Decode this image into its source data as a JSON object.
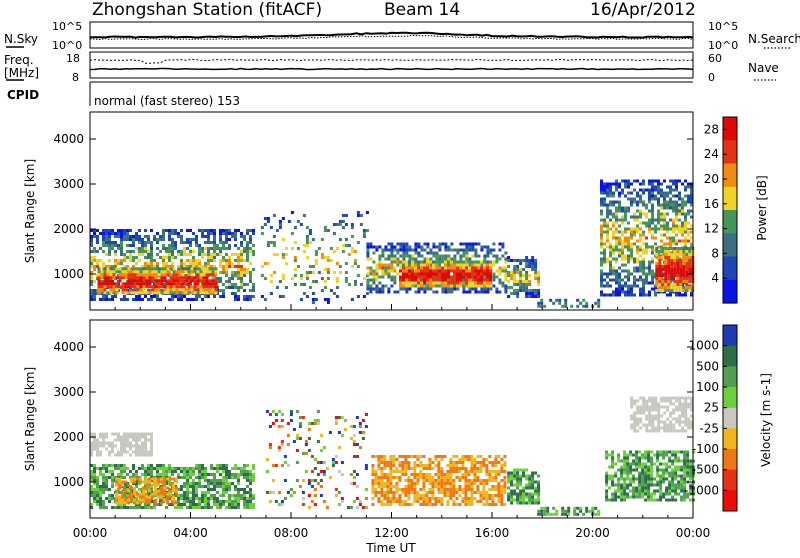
{
  "header": {
    "station": "Zhongshan Station (fitACF)",
    "beam": "Beam 14",
    "date": "16/Apr/2012"
  },
  "status_panels": {
    "nsky_label": "N.Sky",
    "nsky_ticks": [
      "10^5",
      "10^0"
    ],
    "nsearch_label": "N.Search",
    "nsearch_ticks": [
      "10^5",
      "10^0"
    ],
    "freq_label": "Freq.",
    "freq_unit": "[MHz]",
    "freq_ticks": [
      "18",
      "8"
    ],
    "nave_label": "Nave",
    "nave_ticks": [
      "60",
      "0"
    ],
    "cpid_label": "CPID",
    "cpid_text": "normal (fast stereo) 153"
  },
  "chart_data": [
    {
      "type": "heatmap",
      "panel": "power",
      "ylabel": "Slant Range [km]",
      "xlabel": "Time UT",
      "y_ticks": [
        "1000",
        "2000",
        "3000",
        "4000"
      ],
      "ylim": [
        200,
        4600
      ],
      "xlim": [
        0,
        24
      ],
      "x_ticks": [
        "00:00",
        "04:00",
        "08:00",
        "12:00",
        "16:00",
        "20:00",
        "00:00"
      ],
      "colorbar_label": "Power [dB]",
      "colorbar_ticks": [
        "4",
        "8",
        "12",
        "16",
        "20",
        "24",
        "28"
      ],
      "colorbar_range": [
        0,
        30
      ],
      "colorbar_colors": [
        "#0a14e6",
        "#1e46b4",
        "#3c6f82",
        "#46965a",
        "#f0d228",
        "#f08c14",
        "#e63214",
        "#dc0a0a"
      ],
      "echo_regions": [
        {
          "t0": 0.0,
          "t1": 6.5,
          "r0": 450,
          "r1": 2000,
          "level": "mixed"
        },
        {
          "t0": 0.3,
          "t1": 5.0,
          "r0": 550,
          "r1": 1150,
          "level": "strong"
        },
        {
          "t0": 6.8,
          "t1": 11.0,
          "r0": 350,
          "r1": 2400,
          "level": "sparse"
        },
        {
          "t0": 11.0,
          "t1": 16.5,
          "r0": 600,
          "r1": 1700,
          "level": "mixed"
        },
        {
          "t0": 12.3,
          "t1": 16.0,
          "r0": 700,
          "r1": 1300,
          "level": "strong"
        },
        {
          "t0": 16.6,
          "t1": 17.8,
          "r0": 500,
          "r1": 1400,
          "level": "moderate"
        },
        {
          "t0": 17.8,
          "t1": 20.3,
          "r0": 250,
          "r1": 450,
          "level": "weak"
        },
        {
          "t0": 20.3,
          "t1": 24.0,
          "r0": 500,
          "r1": 3100,
          "level": "mixed"
        },
        {
          "t0": 22.5,
          "t1": 24.0,
          "r0": 600,
          "r1": 1600,
          "level": "strong"
        }
      ]
    },
    {
      "type": "heatmap",
      "panel": "velocity",
      "ylabel": "Slant Range [km]",
      "xlabel": "Time UT",
      "y_ticks": [
        "1000",
        "2000",
        "3000",
        "4000"
      ],
      "ylim": [
        200,
        4600
      ],
      "xlim": [
        0,
        24
      ],
      "x_ticks": [
        "00:00",
        "04:00",
        "08:00",
        "12:00",
        "16:00",
        "20:00",
        "00:00"
      ],
      "colorbar_label": "Velocity [m s-1]",
      "colorbar_ticks": [
        "1000",
        "500",
        "100",
        "25",
        "-25",
        "-100",
        "-500",
        "-1000"
      ],
      "colorbar_colors": [
        "#1e3cb4",
        "#2d6e4b",
        "#50a050",
        "#6ccf3c",
        "#c8c8c0",
        "#f0b41e",
        "#f07814",
        "#e63214",
        "#f00a0a"
      ],
      "echo_regions": [
        {
          "t0": 0.0,
          "t1": 6.5,
          "r0": 450,
          "r1": 1400,
          "class": "positive"
        },
        {
          "t0": 0.0,
          "t1": 2.5,
          "r0": 1600,
          "r1": 2100,
          "class": "near-zero"
        },
        {
          "t0": 1.0,
          "t1": 3.5,
          "r0": 500,
          "r1": 1100,
          "class": "negative"
        },
        {
          "t0": 7.0,
          "t1": 11.0,
          "r0": 400,
          "r1": 2600,
          "class": "sparse-mixed"
        },
        {
          "t0": 11.2,
          "t1": 16.5,
          "r0": 500,
          "r1": 1600,
          "class": "negative"
        },
        {
          "t0": 16.6,
          "t1": 17.8,
          "r0": 500,
          "r1": 1300,
          "class": "positive"
        },
        {
          "t0": 17.8,
          "t1": 20.3,
          "r0": 250,
          "r1": 450,
          "class": "positive"
        },
        {
          "t0": 20.5,
          "t1": 24.0,
          "r0": 600,
          "r1": 1700,
          "class": "positive"
        },
        {
          "t0": 21.5,
          "t1": 24.0,
          "r0": 2100,
          "r1": 2900,
          "class": "near-zero"
        }
      ]
    }
  ]
}
